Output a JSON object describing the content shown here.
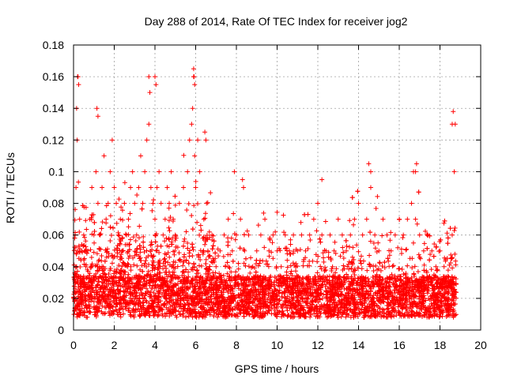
{
  "chart_data": {
    "type": "scatter",
    "title": "Day 288 of 2014, Rate Of TEC Index for receiver jog2",
    "xlabel": "GPS time / hours",
    "ylabel": "ROTI / TECUs",
    "xlim": [
      0,
      20
    ],
    "ylim": [
      0,
      0.18
    ],
    "xticks": [
      "0",
      "2",
      "4",
      "6",
      "8",
      "10",
      "12",
      "14",
      "16",
      "18",
      "20"
    ],
    "yticks": [
      "0",
      "0.02",
      "0.04",
      "0.06",
      "0.08",
      "0.1",
      "0.12",
      "0.14",
      "0.16",
      "0.18"
    ],
    "grid": true,
    "marker": "+",
    "color": "#ff0000",
    "series": [
      {
        "name": "ROTI",
        "x": [
          0.05,
          0.1,
          0.15,
          0.2,
          0.12,
          0.18,
          0.08,
          0.15,
          0.22,
          0.3,
          0.4,
          0.5,
          0.6,
          0.7,
          0.8,
          0.9,
          1.0,
          1.1,
          1.2,
          1.3,
          1.4,
          1.5,
          1.6,
          1.7,
          1.8,
          1.9,
          2.0,
          2.1,
          2.2,
          2.3,
          2.4,
          2.5,
          2.6,
          2.7,
          2.8,
          2.9,
          3.0,
          3.1,
          3.2,
          3.3,
          3.4,
          3.5,
          3.6,
          3.7,
          3.8,
          3.9,
          4.0,
          4.1,
          4.2,
          4.3,
          4.4,
          4.5,
          4.6,
          4.7,
          4.8,
          4.9,
          5.0,
          5.2,
          5.4,
          5.6,
          5.7,
          5.8,
          5.85,
          5.9,
          5.95,
          6.0,
          6.1,
          6.2,
          6.4,
          6.6,
          6.8,
          7.0,
          7.2,
          7.4,
          7.6,
          7.8,
          8.0,
          8.2,
          8.4,
          8.6,
          8.8,
          9.0,
          9.2,
          9.4,
          9.6,
          9.8,
          10.0,
          10.2,
          10.4,
          10.6,
          10.8,
          11.0,
          11.2,
          11.4,
          11.6,
          11.8,
          12.0,
          12.2,
          12.4,
          12.6,
          12.8,
          13.0,
          13.2,
          13.4,
          13.6,
          13.8,
          14.0,
          14.2,
          14.4,
          14.6,
          14.8,
          15.0,
          15.2,
          15.4,
          15.6,
          15.8,
          16.0,
          16.2,
          16.4,
          16.6,
          16.7,
          16.8,
          17.0,
          17.2,
          17.4,
          17.6,
          17.8,
          18.0,
          18.2,
          18.4,
          18.6,
          18.7,
          18.75,
          0.2,
          0.25,
          1.15,
          1.2,
          3.7,
          3.75,
          4.0,
          4.05,
          5.9,
          5.92,
          5.95,
          6.45,
          6.5,
          7.9,
          8.3,
          8.35,
          12.2,
          14.5,
          14.6,
          16.8,
          16.85,
          18.6,
          18.65
        ],
        "y": [
          0.02,
          0.03,
          0.04,
          0.05,
          0.09,
          0.12,
          0.06,
          0.14,
          0.16,
          0.07,
          0.05,
          0.06,
          0.04,
          0.05,
          0.07,
          0.09,
          0.06,
          0.1,
          0.08,
          0.06,
          0.09,
          0.11,
          0.07,
          0.08,
          0.1,
          0.12,
          0.09,
          0.08,
          0.06,
          0.07,
          0.05,
          0.08,
          0.06,
          0.07,
          0.09,
          0.1,
          0.08,
          0.06,
          0.09,
          0.11,
          0.08,
          0.1,
          0.12,
          0.13,
          0.09,
          0.08,
          0.07,
          0.09,
          0.1,
          0.08,
          0.06,
          0.07,
          0.09,
          0.08,
          0.1,
          0.07,
          0.06,
          0.08,
          0.09,
          0.1,
          0.12,
          0.13,
          0.14,
          0.16,
          0.11,
          0.09,
          0.12,
          0.1,
          0.07,
          0.05,
          0.06,
          0.04,
          0.05,
          0.06,
          0.07,
          0.05,
          0.06,
          0.07,
          0.05,
          0.06,
          0.04,
          0.05,
          0.06,
          0.07,
          0.05,
          0.06,
          0.05,
          0.04,
          0.06,
          0.05,
          0.06,
          0.05,
          0.06,
          0.05,
          0.06,
          0.07,
          0.08,
          0.06,
          0.05,
          0.06,
          0.05,
          0.07,
          0.06,
          0.05,
          0.06,
          0.07,
          0.08,
          0.06,
          0.07,
          0.09,
          0.06,
          0.05,
          0.07,
          0.06,
          0.05,
          0.06,
          0.07,
          0.06,
          0.07,
          0.08,
          0.1,
          0.07,
          0.06,
          0.05,
          0.06,
          0.05,
          0.04,
          0.05,
          0.04,
          0.03,
          0.06,
          0.1,
          0.13,
          0.16,
          0.155,
          0.14,
          0.135,
          0.16,
          0.15,
          0.16,
          0.155,
          0.165,
          0.16,
          0.155,
          0.125,
          0.12,
          0.1,
          0.095,
          0.09,
          0.095,
          0.105,
          0.1,
          0.1,
          0.105,
          0.13,
          0.138
        ],
        "density_note": "Dense band of points between 0.01 and 0.04 TECU across 0 to 18.8 hours"
      }
    ]
  }
}
